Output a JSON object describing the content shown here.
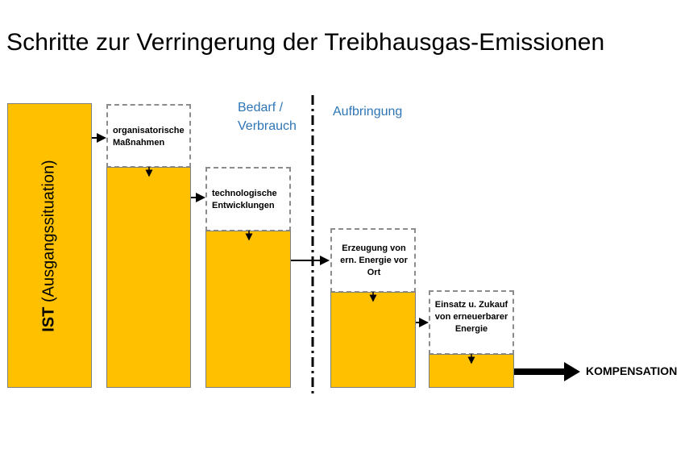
{
  "title": "Schritte zur Verringerung der Treibhausgas-Emissionen",
  "ist": {
    "bold": "IST",
    "rest": " (Ausgangssituation)"
  },
  "sections": {
    "demand": "Bedarf / Verbrauch",
    "supply": "Aufbringung"
  },
  "steps": [
    {
      "label": "organisatorische Maßnahmen"
    },
    {
      "label": "technologische Entwicklungen"
    },
    {
      "label": "Erzeugung von ern. Energie vor Ort"
    },
    {
      "label": "Einsatz u. Zukauf von erneuerbarer Energie"
    }
  ],
  "result": "KOMPENSATION",
  "colors": {
    "bar": "#FFC000",
    "accent": "#2E75B6",
    "dash": "#8c8c8c"
  }
}
